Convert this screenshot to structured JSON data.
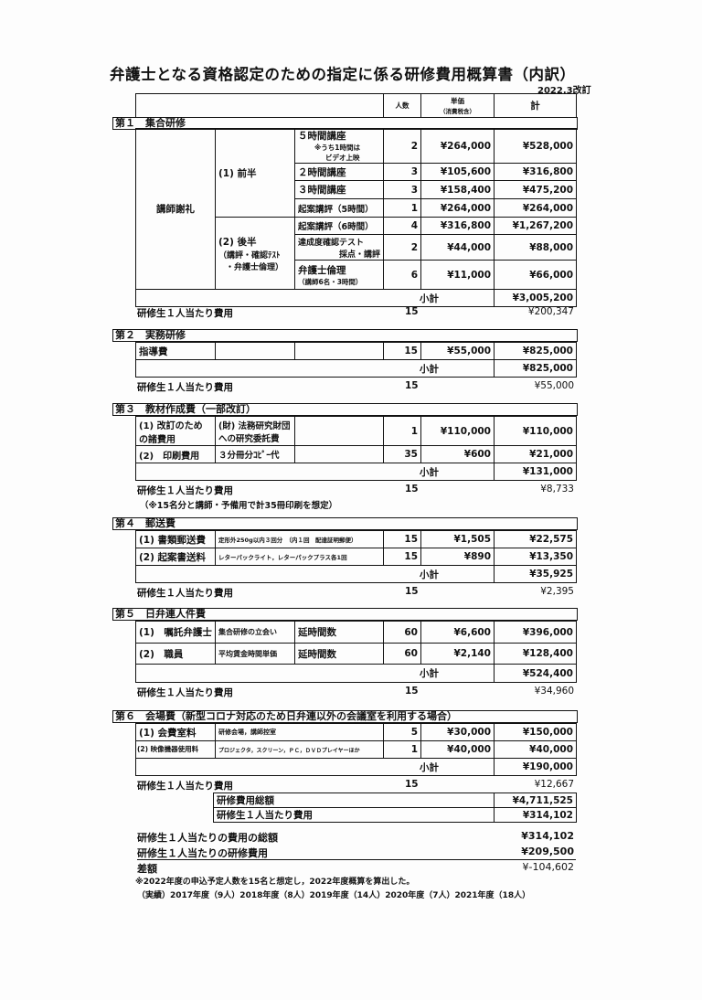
{
  "title": "弁護士となる資格認定のための指定に係る研修費用概算書（内訳）",
  "revision": "2022.3改訂",
  "header": {
    "count": "人数",
    "unit_price": "単価",
    "unit_price_note": "（消費税含）",
    "total": "計"
  },
  "subtotal_label": "小計",
  "per_person_label": "研修生１人当たり費用",
  "s1": {
    "title": "第１　集合研修",
    "category": "講師謝礼",
    "first_half": "(1) 前半",
    "second_half": "(2) 後半",
    "second_half_note1": "（講評・確認ﾃｽﾄ",
    "second_half_note2": "・弁護士倫理）",
    "rows": [
      {
        "item": "５時間講座",
        "note1": "※うち1時間は",
        "note2": "ビデオ上映",
        "count": "2",
        "unit": "¥264,000",
        "total": "¥528,000"
      },
      {
        "item": "２時間講座",
        "count": "3",
        "unit": "¥105,600",
        "total": "¥316,800"
      },
      {
        "item": "３時間講座",
        "count": "3",
        "unit": "¥158,400",
        "total": "¥475,200"
      },
      {
        "item": "起案講評（5時間）",
        "count": "1",
        "unit": "¥264,000",
        "total": "¥264,000"
      },
      {
        "item": "起案講評（6時間）",
        "count": "4",
        "unit": "¥316,800",
        "total": "¥1,267,200"
      },
      {
        "item": "達成度確認テスト",
        "note1": "採点・講評",
        "count": "2",
        "unit": "¥44,000",
        "total": "¥88,000"
      },
      {
        "item": "弁護士倫理",
        "note1": "（講師6名・3時間）",
        "count": "6",
        "unit": "¥11,000",
        "total": "¥66,000"
      }
    ],
    "subtotal": "¥3,005,200",
    "pp_count": "15",
    "pp_value": "¥200,347"
  },
  "s2": {
    "title": "第２　実務研修",
    "rows": [
      {
        "item": "指導費",
        "count": "15",
        "unit": "¥55,000",
        "total": "¥825,000"
      }
    ],
    "subtotal": "¥825,000",
    "pp_count": "15",
    "pp_value": "¥55,000"
  },
  "s3": {
    "title": "第３　教材作成費（一部改訂）",
    "rows": [
      {
        "item1": "(1) 改訂のため",
        "item2": "の諸費用",
        "desc1": "(財) 法務研究財団",
        "desc2": "への研究委託費",
        "count": "1",
        "unit": "¥110,000",
        "total": "¥110,000"
      },
      {
        "item1": "(2)　印刷費用",
        "desc1": "３分冊分ｺﾋﾟｰ代",
        "count": "35",
        "unit": "¥600",
        "total": "¥21,000"
      }
    ],
    "subtotal": "¥131,000",
    "pp_count": "15",
    "pp_value": "¥8,733",
    "note": "（※15名分と講師・予備用で計35冊印刷を想定）"
  },
  "s4": {
    "title": "第４　郵送費",
    "rows": [
      {
        "item": "(1) 書類郵送費",
        "desc": "定形外250g以内３回分　（内１回　配達証明郵便）",
        "count": "15",
        "unit": "¥1,505",
        "total": "¥22,575"
      },
      {
        "item": "(2) 起案書送料",
        "desc": "レターパックライト，レターパックプラス各1回",
        "count": "15",
        "unit": "¥890",
        "total": "¥13,350"
      }
    ],
    "subtotal": "¥35,925",
    "pp_count": "15",
    "pp_value": "¥2,395"
  },
  "s5": {
    "title": "第５　日弁連人件費",
    "rows": [
      {
        "item": "(1)　嘱託弁護士",
        "desc": "集合研修の立会い",
        "basis": "延時間数",
        "count": "60",
        "unit": "¥6,600",
        "total": "¥396,000"
      },
      {
        "item": "(2)　職員",
        "desc": "平均賃金時間単価",
        "basis": "延時間数",
        "count": "60",
        "unit": "¥2,140",
        "total": "¥128,400"
      }
    ],
    "subtotal": "¥524,400",
    "pp_count": "15",
    "pp_value": "¥34,960"
  },
  "s6": {
    "title": "第６　会場費（新型コロナ対応のため日弁連以外の会議室を利用する場合）",
    "rows": [
      {
        "item": "(1) 会費室料",
        "desc": "研修会場，講師控室",
        "count": "5",
        "unit": "¥30,000",
        "total": "¥150,000"
      },
      {
        "item": "(2) 映像機器使用料",
        "desc": "プロジェクタ，スクリーン，ＰＣ，ＤＶＤプレイヤーほか",
        "count": "1",
        "unit": "¥40,000",
        "total": "¥40,000"
      }
    ],
    "subtotal": "¥190,000",
    "pp_count": "15",
    "pp_value": "¥12,667"
  },
  "totals": {
    "total_label": "研修費用総額",
    "total": "¥4,711,525",
    "pp_label": "研修生１人当たり費用",
    "pp": "¥314,102"
  },
  "summary": {
    "line1_label": "研修生１人当たりの費用の総額",
    "line1": "¥314,102",
    "line2_label": "研修生１人当たりの研修費用",
    "line2": "¥209,500",
    "diff_label": "差額",
    "diff": "¥-104,602"
  },
  "footnote1": "※2022年度の申込予定人数を15名と想定し，2022年度概算を算出した。",
  "footnote2": "（実績）2017年度（9人）2018年度（8人）2019年度（14人）2020年度（7人）2021年度（18人）"
}
